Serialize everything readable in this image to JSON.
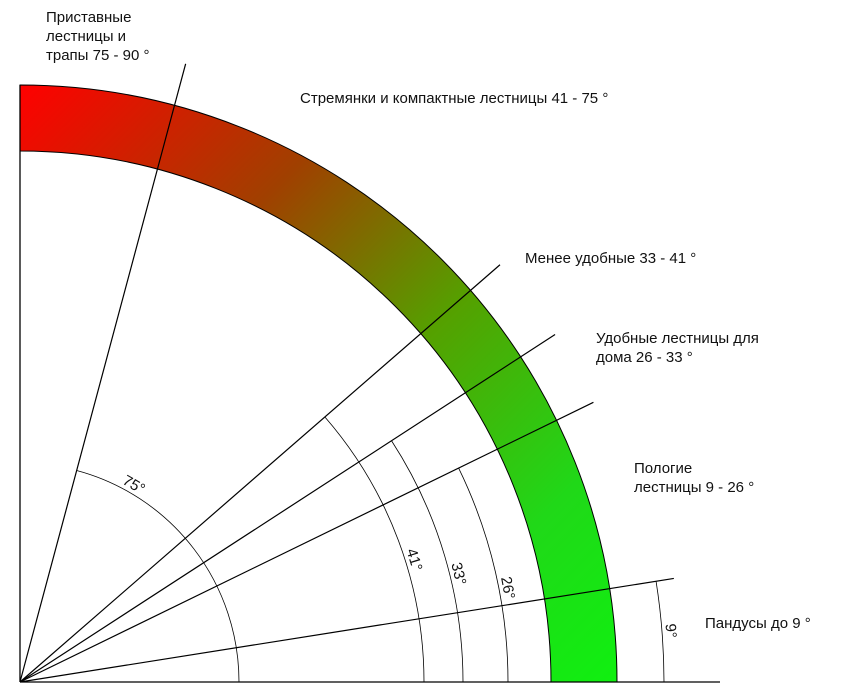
{
  "zones": [
    {
      "label": "Приставные\nлестницы и\nтрапы 75 - 90 °"
    },
    {
      "label": "Стремянки и компактные лестницы 41 - 75 °"
    },
    {
      "label": "Менее удобные 33 - 41 °"
    },
    {
      "label": "Удобные лестницы для\nдома 26 - 33 °"
    },
    {
      "label": "Пологие\nлестницы 9 - 26 °"
    },
    {
      "label": "Пандусы до 9 °"
    }
  ],
  "angles": [
    {
      "value": 75,
      "label": "75°"
    },
    {
      "value": 41,
      "label": "41°"
    },
    {
      "value": 33,
      "label": "33°"
    },
    {
      "value": 26,
      "label": "26°"
    },
    {
      "value": 9,
      "label": "9°"
    }
  ],
  "colors": {
    "steep": "#ff0000",
    "gentle": "#10f010",
    "line": "#000000"
  }
}
